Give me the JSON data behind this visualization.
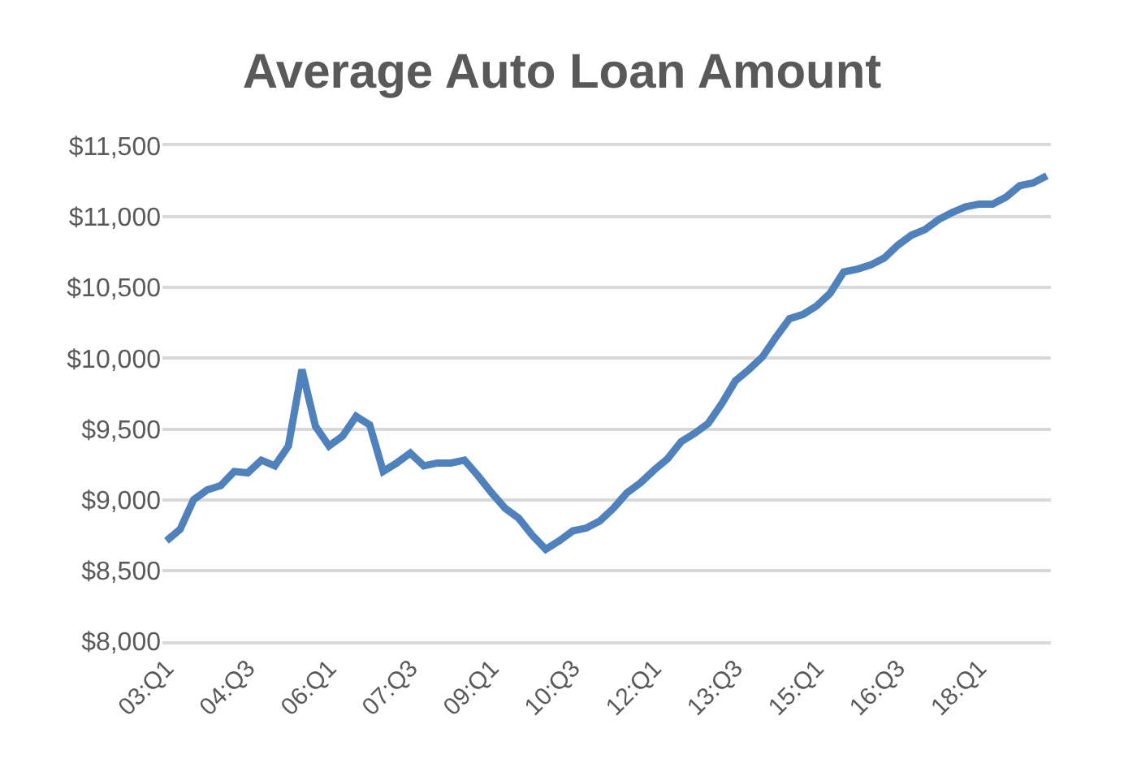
{
  "chart_data": {
    "type": "line",
    "title": "Average Auto Loan Amount",
    "categories": [
      "03:Q1",
      null,
      null,
      null,
      null,
      null,
      "04:Q3",
      null,
      null,
      null,
      null,
      null,
      "06:Q1",
      null,
      null,
      null,
      null,
      null,
      "07:Q3",
      null,
      null,
      null,
      null,
      null,
      "09:Q1",
      null,
      null,
      null,
      null,
      null,
      "10:Q3",
      null,
      null,
      null,
      null,
      null,
      "12:Q1",
      null,
      null,
      null,
      null,
      null,
      "13:Q3",
      null,
      null,
      null,
      null,
      null,
      "15:Q1",
      null,
      null,
      null,
      null,
      null,
      "16:Q3",
      null,
      null,
      null,
      null,
      null,
      "18:Q1",
      null,
      null,
      null,
      null,
      null
    ],
    "series": [
      {
        "color": "#4f81bd",
        "values": [
          8710,
          8790,
          9000,
          9070,
          9100,
          9200,
          9190,
          9280,
          9240,
          9380,
          9920,
          9520,
          9380,
          9450,
          9590,
          9530,
          9200,
          9260,
          9330,
          9240,
          9260,
          9260,
          9280,
          9170,
          9050,
          8940,
          8870,
          8750,
          8650,
          8710,
          8780,
          8800,
          8850,
          8940,
          9050,
          9120,
          9210,
          9290,
          9410,
          9470,
          9540,
          9680,
          9840,
          9920,
          10010,
          10150,
          10280,
          10310,
          10370,
          10460,
          10610,
          10630,
          10660,
          10710,
          10800,
          10870,
          10910,
          10980,
          11030,
          11070,
          11090,
          11090,
          11140,
          11220,
          11240,
          11290
        ]
      }
    ],
    "ylim": [
      8000,
      11500
    ],
    "yticks": [
      {
        "value": 8000,
        "label": "$8,000"
      },
      {
        "value": 8500,
        "label": "$8,500"
      },
      {
        "value": 9000,
        "label": "$9,000"
      },
      {
        "value": 9500,
        "label": "$9,500"
      },
      {
        "value": 10000,
        "label": "$10,000"
      },
      {
        "value": 10500,
        "label": "$10,500"
      },
      {
        "value": 11000,
        "label": "$11,000"
      },
      {
        "value": 11500,
        "label": "$11,500"
      }
    ],
    "grid": "y",
    "marker": "none",
    "line_style": "solid"
  }
}
